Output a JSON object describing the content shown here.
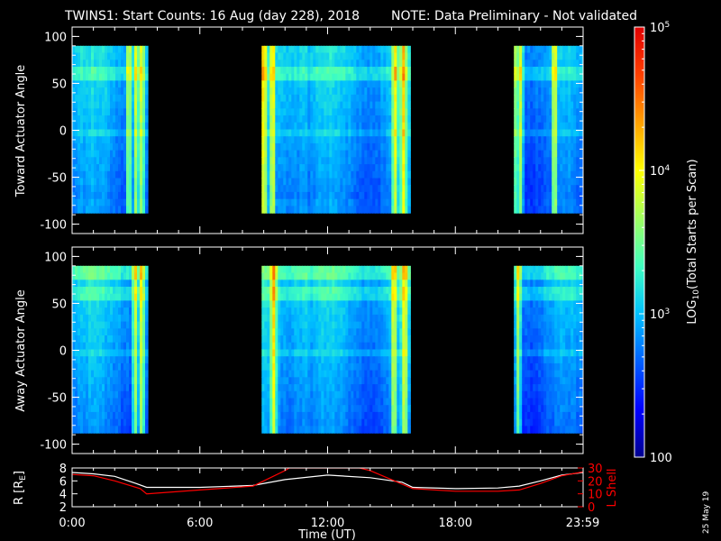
{
  "title": "TWINS1: Start Counts: 16 Aug (day 228), 2018",
  "note": "NOTE: Data Preliminary - Not validated",
  "colors": {
    "background": "#000000",
    "axes": "#ffffff",
    "note": "#ff0000",
    "r_line": "#ffffff",
    "lshell_line": "#ff0000"
  },
  "chart_data": [
    {
      "type": "heatmap",
      "ylabel": "Toward Actuator Angle",
      "ylim": [
        -110,
        110
      ],
      "yticks": [
        "100",
        "50",
        "0",
        "-50",
        "-100"
      ],
      "ytick_values": [
        100,
        50,
        0,
        -50,
        -100
      ],
      "angle_range": [
        -88,
        90
      ],
      "data_intervals_hours": [
        [
          0.0,
          3.45
        ],
        [
          8.9,
          15.85
        ],
        [
          20.75,
          24.0
        ]
      ],
      "enhancements_hours": [
        2.6,
        2.95,
        3.2,
        8.95,
        9.35,
        15.1,
        15.5,
        20.8,
        21.0,
        22.6
      ]
    },
    {
      "type": "heatmap",
      "ylabel": "Away Actuator Angle",
      "ylim": [
        -110,
        110
      ],
      "yticks": [
        "100",
        "50",
        "0",
        "-50",
        "-100"
      ],
      "ytick_values": [
        100,
        50,
        0,
        -50,
        -100
      ],
      "angle_range": [
        -88,
        90
      ],
      "data_intervals_hours": [
        [
          0.0,
          3.45
        ],
        [
          8.9,
          15.85
        ],
        [
          20.75,
          24.0
        ]
      ],
      "enhancements_hours": [
        2.9,
        3.2,
        9.4,
        15.05,
        15.55,
        20.9
      ]
    },
    {
      "type": "line",
      "ylabel_left": "R [R",
      "ylabel_left_sub": "E",
      "ylabel_left_close": "]",
      "ylabel_right": "L Shell",
      "ylim_left": [
        2,
        8
      ],
      "ylim_right": [
        0,
        30
      ],
      "yticks_left": [
        "2",
        "4",
        "6",
        "8"
      ],
      "ytick_values_left": [
        2,
        4,
        6,
        8
      ],
      "yticks_right": [
        "0",
        "10",
        "20",
        "30"
      ],
      "ytick_values_right": [
        0,
        10,
        20,
        30
      ],
      "xlabel": "Time (UT)",
      "xticks": [
        "0:00",
        "6:00",
        "12:00",
        "18:00",
        "23:59"
      ],
      "xtick_values_hours": [
        0,
        6,
        12,
        18,
        23.98
      ],
      "xlim_hours": [
        0,
        24
      ],
      "series": [
        {
          "name": "R",
          "axis": "left",
          "x_hours": [
            0,
            1,
            2,
            3,
            3.5,
            6,
            8.5,
            10,
            12,
            14,
            15.5,
            16,
            18,
            20,
            21,
            22,
            23,
            24
          ],
          "values": [
            7.3,
            7.1,
            6.7,
            5.6,
            5.0,
            5.0,
            5.3,
            6.2,
            6.9,
            6.5,
            5.8,
            5.0,
            4.8,
            4.9,
            5.2,
            6.0,
            6.9,
            7.3
          ]
        },
        {
          "name": "L Shell",
          "axis": "right",
          "x_hours": [
            0,
            1,
            2,
            3.2,
            3.5,
            6,
            8.5,
            10,
            10.2,
            13.5,
            14,
            16,
            18,
            20,
            21,
            22,
            23,
            24
          ],
          "values": [
            25,
            24,
            20,
            14,
            10,
            13,
            16,
            28,
            30,
            30,
            28,
            14,
            12,
            12,
            13,
            18,
            24,
            27
          ]
        }
      ]
    }
  ],
  "colorbar": {
    "label": "LOG",
    "label_sub": "10",
    "label_rest": "(Total Starts per Scan)",
    "scale": "log",
    "range": [
      100,
      100000
    ],
    "ticks": [
      {
        "value": 100000,
        "base": "10",
        "exp": "5"
      },
      {
        "value": 10000,
        "base": "10",
        "exp": "4"
      },
      {
        "value": 1000,
        "base": "10",
        "exp": "3"
      },
      {
        "value": 100,
        "text": "100"
      }
    ],
    "stops": [
      "#00008f",
      "#0000ff",
      "#0060ff",
      "#00c0ff",
      "#40ffc0",
      "#a0ff60",
      "#ffff00",
      "#ffa000",
      "#ff4000",
      "#e00000"
    ]
  },
  "date_stamp": "25 May 19"
}
